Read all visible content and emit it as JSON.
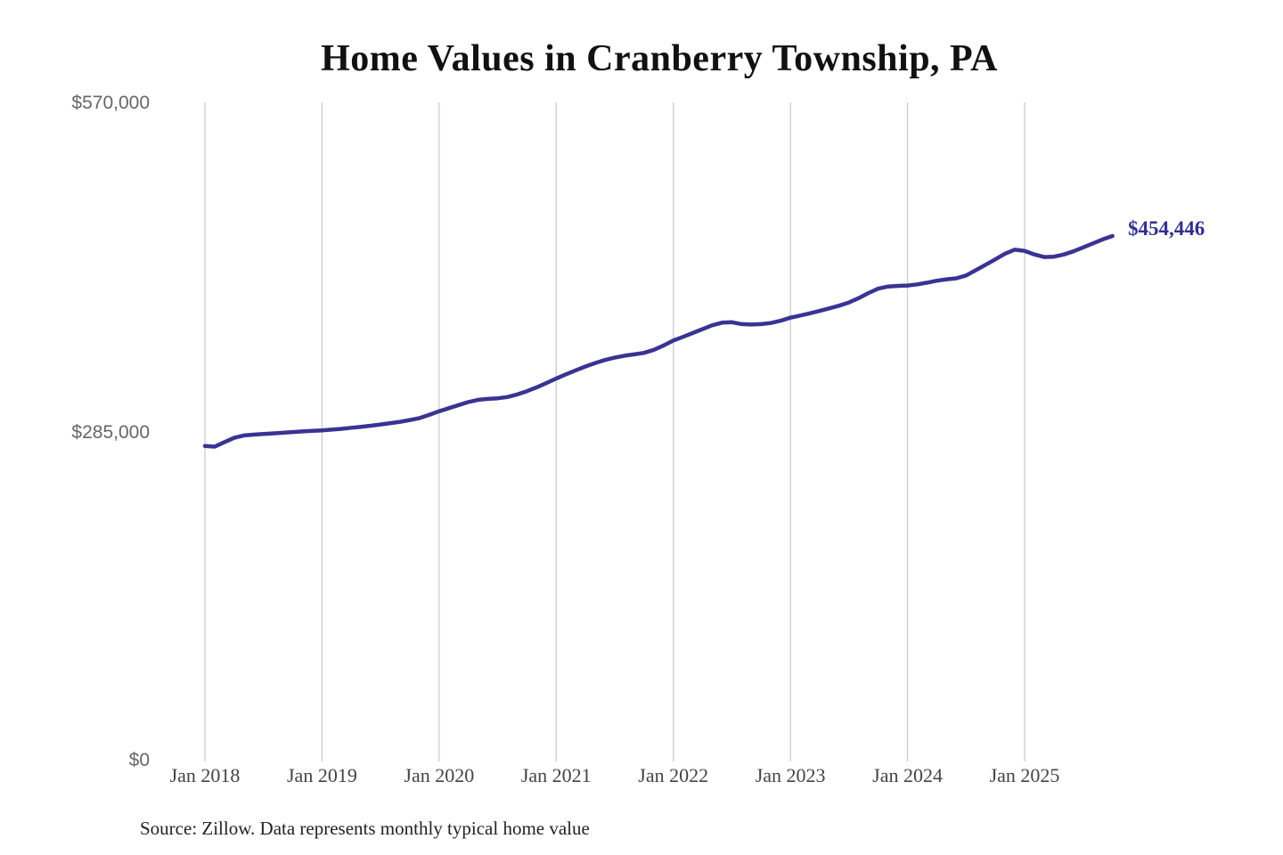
{
  "chart_data": {
    "type": "line",
    "title": "Home Values in Cranberry Township, PA",
    "series_name": "Monthly typical home value",
    "x_monthly_from": "2018-01",
    "x_monthly_to": "2025-10",
    "x_tick_labels": [
      "Jan 2018",
      "Jan 2019",
      "Jan 2020",
      "Jan 2021",
      "Jan 2022",
      "Jan 2023",
      "Jan 2024",
      "Jan 2025"
    ],
    "y_tick_labels": [
      "$570,000",
      "$285,000",
      "$0"
    ],
    "y_ticks": [
      570000,
      285000,
      0
    ],
    "ylim": [
      0,
      570000
    ],
    "grid": "vertical-only",
    "legend": "none",
    "end_label": "$454,446",
    "end_value": 454446,
    "values": [
      272800,
      272300,
      276200,
      279900,
      282000,
      282700,
      283300,
      283800,
      284300,
      284900,
      285500,
      286000,
      286400,
      287000,
      287700,
      288600,
      289500,
      290400,
      291500,
      292600,
      293800,
      295300,
      297000,
      299800,
      302900,
      305600,
      308300,
      310900,
      312800,
      313600,
      314100,
      315200,
      317400,
      320300,
      323600,
      327300,
      331200,
      334800,
      338300,
      341600,
      344600,
      347200,
      349300,
      350900,
      352100,
      353400,
      356000,
      359800,
      364000,
      367300,
      370600,
      374000,
      377300,
      379500,
      379900,
      378300,
      377900,
      378300,
      379200,
      381200,
      383800,
      385700,
      387600,
      389700,
      391900,
      394200,
      397000,
      400800,
      405200,
      408900,
      410800,
      411300,
      411600,
      412600,
      414100,
      415800,
      417000,
      417900,
      420300,
      424900,
      429600,
      434300,
      439200,
      442700,
      441600,
      438500,
      436300,
      436600,
      438400,
      441200,
      444600,
      448100,
      451500,
      454446
    ],
    "colors": {
      "line": "#3a3393",
      "end_label": "#332f8f",
      "gridline": "#cccccc",
      "y_axis_text": "#666666",
      "x_axis_text": "#444444",
      "title_text": "#111111",
      "source_text": "#222222"
    }
  },
  "footer": {
    "source": "Source: Zillow. Data represents monthly typical home value"
  }
}
